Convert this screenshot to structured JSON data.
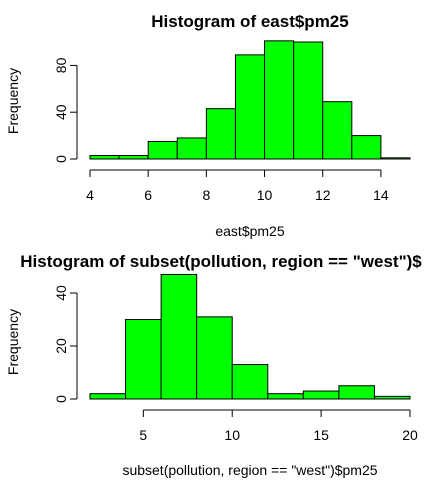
{
  "colors": {
    "bar_fill": "#00ff00",
    "bar_stroke": "#000000"
  },
  "chart_data": [
    {
      "type": "bar",
      "title": "Histogram of east$pm25",
      "xlabel": "east$pm25",
      "ylabel": "Frequency",
      "bin_edges": [
        4,
        5,
        6,
        7,
        8,
        9,
        10,
        11,
        12,
        13,
        14,
        15
      ],
      "values": [
        3,
        3,
        15,
        18,
        43,
        89,
        101,
        100,
        49,
        20,
        1
      ],
      "xlim": [
        4,
        15
      ],
      "ylim": [
        0,
        100
      ],
      "x_ticks": [
        4,
        6,
        8,
        10,
        12,
        14
      ],
      "y_ticks": [
        0,
        40,
        80
      ],
      "grid": false
    },
    {
      "type": "bar",
      "title": "Histogram of subset(pollution, region == \"west\")$",
      "xlabel": "subset(pollution, region == \"west\")$pm25",
      "ylabel": "Frequency",
      "bin_edges": [
        2,
        4,
        6,
        8,
        10,
        12,
        14,
        16,
        18,
        20
      ],
      "values": [
        2,
        30,
        47,
        31,
        13,
        2,
        3,
        5,
        1
      ],
      "xlim": [
        2,
        20
      ],
      "ylim": [
        0,
        40
      ],
      "x_ticks": [
        5,
        10,
        15,
        20
      ],
      "y_ticks": [
        0,
        20,
        40
      ],
      "grid": false
    }
  ]
}
